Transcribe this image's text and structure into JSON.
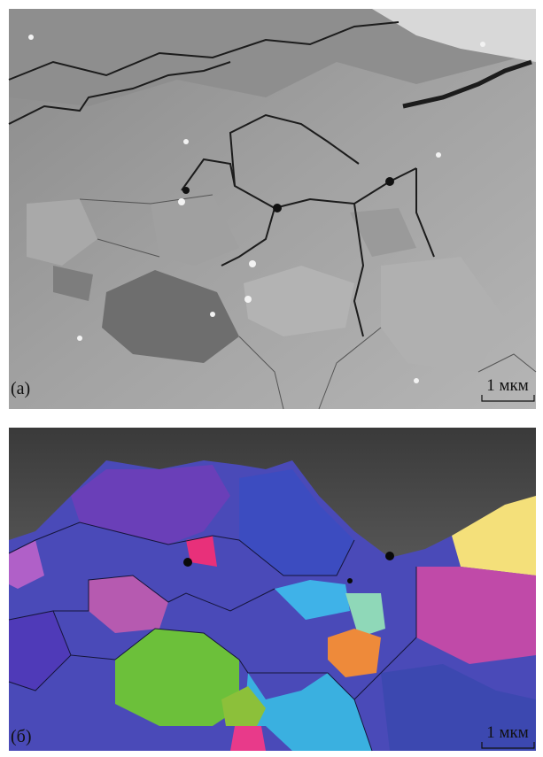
{
  "panels": [
    {
      "label": "(а)",
      "scale_bar": "1 мкм"
    },
    {
      "label": "(б)",
      "scale_bar": "1 мкм"
    }
  ]
}
